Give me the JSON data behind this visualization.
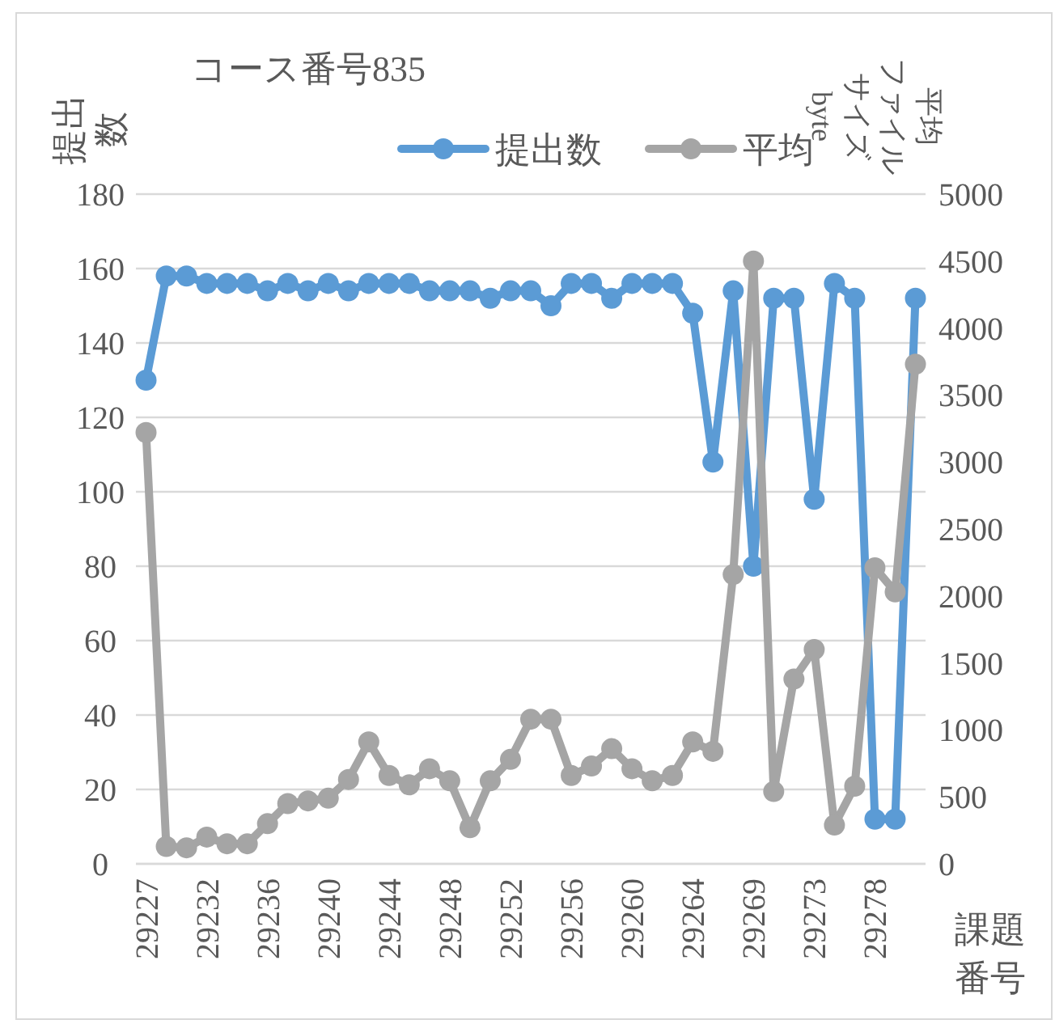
{
  "chart_data": {
    "type": "line",
    "title": "コース番号835",
    "xlabel": "課題番号",
    "ylabel": "提出数",
    "y2label": "平均ファイルサイズbyte",
    "categories": [
      "29227",
      null,
      null,
      "29232",
      null,
      null,
      "29236",
      null,
      null,
      "29240",
      null,
      null,
      "29244",
      null,
      null,
      "29248",
      null,
      null,
      "29252",
      null,
      null,
      "29256",
      null,
      null,
      "29260",
      null,
      null,
      "29264",
      null,
      null,
      "29269",
      null,
      null,
      "29273",
      null,
      null,
      "29278",
      null,
      null
    ],
    "series": [
      {
        "name": "提出数",
        "color": "#5b9bd5",
        "values": [
          130,
          158,
          158,
          156,
          156,
          156,
          154,
          156,
          154,
          156,
          154,
          156,
          156,
          156,
          154,
          154,
          154,
          152,
          154,
          154,
          150,
          156,
          156,
          152,
          156,
          156,
          156,
          148,
          108,
          154,
          80,
          152,
          152,
          98,
          156,
          152,
          12,
          12,
          152
        ]
      },
      {
        "name": "平均",
        "color": "#a5a5a5",
        "axis": "y2",
        "values": [
          3220,
          130,
          120,
          200,
          150,
          150,
          300,
          450,
          470,
          490,
          630,
          910,
          660,
          590,
          710,
          620,
          270,
          620,
          780,
          1080,
          1080,
          660,
          730,
          860,
          710,
          620,
          660,
          910,
          840,
          2160,
          4500,
          540,
          1380,
          1600,
          290,
          580,
          2210,
          2030,
          3730
        ]
      }
    ],
    "ylim": [
      0,
      180
    ],
    "yticks": [
      0,
      20,
      40,
      60,
      80,
      100,
      120,
      140,
      160,
      180
    ],
    "y2lim": [
      0,
      5000
    ],
    "y2ticks": [
      0,
      500,
      1000,
      1500,
      2000,
      2500,
      3000,
      3500,
      4000,
      4500,
      5000
    ],
    "grid": "y",
    "legend": "top",
    "marker": "circle",
    "line_style": "solid"
  }
}
